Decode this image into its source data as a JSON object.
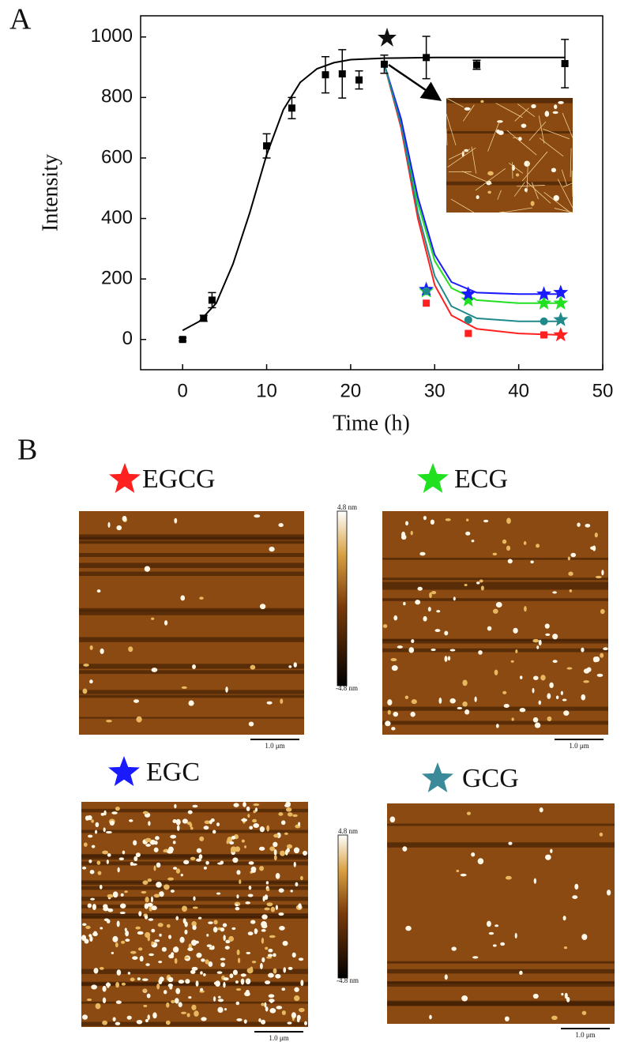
{
  "panel_a": "A",
  "chart_data": {
    "type": "scatter",
    "x_label": "Time (h)",
    "y_label": "Intensity",
    "xlim": [
      -5,
      50
    ],
    "xticks": [
      0,
      10,
      20,
      30,
      40,
      50
    ],
    "ylim": [
      -100,
      1070
    ],
    "yticks": [
      0,
      200,
      400,
      600,
      800,
      1000
    ],
    "series": [
      {
        "color": "#000000",
        "marker": "square",
        "x": [
          0,
          2.5,
          3.5,
          10,
          13,
          17,
          19,
          21,
          24,
          29,
          35,
          45.5
        ],
        "values": [
          0,
          70,
          130,
          640,
          765,
          875,
          878,
          858,
          910,
          932,
          908,
          912
        ],
        "errors": [
          5,
          10,
          25,
          40,
          35,
          60,
          80,
          30,
          30,
          70,
          15,
          80
        ],
        "fit": {
          "x": [
            0,
            2,
            4,
            6,
            8,
            10,
            12,
            14,
            16,
            18,
            20,
            24,
            30,
            40,
            45.5
          ],
          "values": [
            30,
            60,
            120,
            250,
            420,
            610,
            760,
            850,
            895,
            915,
            925,
            930,
            932,
            932,
            932
          ]
        }
      },
      {
        "color": "#ff2020",
        "markers": [
          "square",
          "square",
          "square",
          "star"
        ],
        "x": [
          29,
          34,
          43,
          45
        ],
        "values": [
          120,
          20,
          15,
          15
        ],
        "fit": {
          "x": [
            24,
            26,
            28,
            30,
            32,
            35,
            40,
            45
          ],
          "values": [
            910,
            700,
            400,
            180,
            80,
            35,
            20,
            15
          ]
        }
      },
      {
        "color": "#20e020",
        "markers": [
          "star",
          "star",
          "star",
          "star"
        ],
        "x": [
          29,
          34,
          43,
          45
        ],
        "values": [
          160,
          130,
          120,
          120
        ],
        "fit": {
          "x": [
            24,
            26,
            28,
            30,
            32,
            35,
            40,
            45
          ],
          "values": [
            910,
            720,
            450,
            260,
            170,
            130,
            120,
            120
          ]
        }
      },
      {
        "color": "#1a1aff",
        "markers": [
          "star",
          "star",
          "star",
          "star"
        ],
        "x": [
          29,
          34,
          43,
          45
        ],
        "values": [
          165,
          150,
          150,
          155
        ],
        "fit": {
          "x": [
            24,
            26,
            28,
            30,
            32,
            35,
            40,
            45
          ],
          "values": [
            910,
            730,
            470,
            280,
            190,
            155,
            150,
            150
          ]
        }
      },
      {
        "color": "#208a8a",
        "markers": [
          "circle",
          "circle",
          "circle",
          "star"
        ],
        "x": [
          29,
          34,
          43,
          45
        ],
        "values": [
          160,
          65,
          60,
          65
        ],
        "fit": {
          "x": [
            24,
            26,
            28,
            30,
            32,
            35,
            40,
            45
          ],
          "values": [
            910,
            710,
            420,
            210,
            110,
            70,
            60,
            60
          ]
        }
      }
    ]
  },
  "panel_b": {
    "label": "B",
    "scale_bar": "1.0 μm",
    "colorbar_top": "4.8 nm",
    "colorbar_bottom": "-4.8 nm",
    "images": [
      {
        "label": "EGCG",
        "color": "#ff2020"
      },
      {
        "label": "ECG",
        "color": "#20e020"
      },
      {
        "label": "EGC",
        "color": "#1a1aff"
      },
      {
        "label": "GCG",
        "color": "#3a8a9a"
      }
    ]
  }
}
